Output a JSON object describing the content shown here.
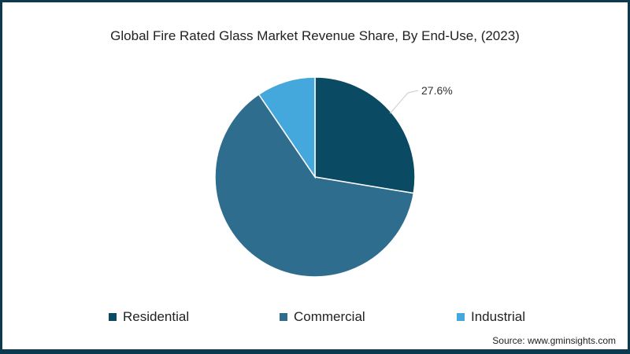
{
  "chart_data": {
    "type": "pie",
    "title": "Global Fire Rated Glass Market Revenue Share, By End-Use, (2023)",
    "categories": [
      "Residential",
      "Commercial",
      "Industrial"
    ],
    "values": [
      27.6,
      62.9,
      9.5
    ],
    "colors": [
      "#0b4a63",
      "#2e6d8e",
      "#45a8dc"
    ],
    "annotations": [
      {
        "category": "Residential",
        "label": "27.6%"
      }
    ],
    "start_angle": "12 o'clock, clockwise",
    "legend_position": "bottom"
  },
  "title": "Global Fire Rated Glass Market Revenue Share, By End-Use, (2023)",
  "annotation_label": "27.6%",
  "legend": [
    {
      "label": "Residential",
      "color": "#0b4a63"
    },
    {
      "label": "Commercial",
      "color": "#2e6d8e"
    },
    {
      "label": "Industrial",
      "color": "#45a8dc"
    }
  ],
  "source": "Source: www.gminsights.com",
  "frame_color": "#0b3a4f"
}
